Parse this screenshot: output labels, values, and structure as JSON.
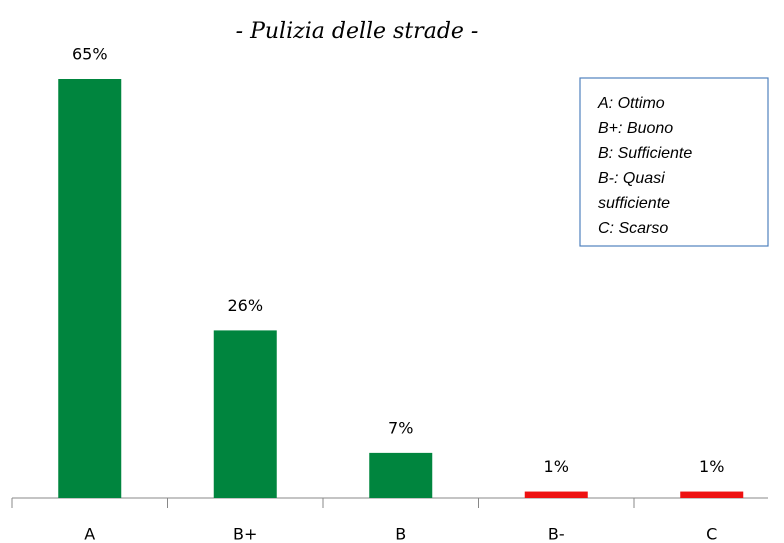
{
  "chart_data": {
    "type": "bar",
    "title": "- Pulizia delle strade -",
    "categories": [
      "A",
      "B+",
      "B",
      "B-",
      "C"
    ],
    "values": [
      65,
      26,
      7,
      1,
      1
    ],
    "value_labels": [
      "65%",
      "26%",
      "7%",
      "1%",
      "1%"
    ],
    "colors": [
      "#00853e",
      "#00853e",
      "#00853e",
      "#ee1111",
      "#ee1111"
    ],
    "annotation": [
      "A: Ottimo",
      "B+: Buono",
      "B: Sufficiente",
      "B-: Quasi",
      "sufficiente",
      "C: Scarso"
    ]
  }
}
